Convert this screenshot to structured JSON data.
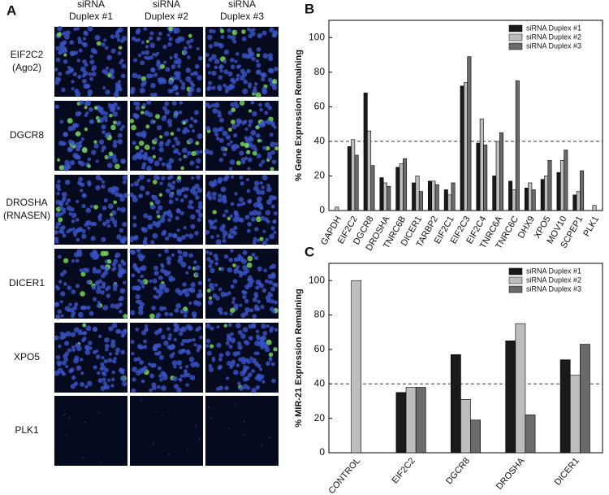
{
  "panel_a": {
    "label": "A",
    "columns": [
      [
        "siRNA",
        "Duplex #1"
      ],
      [
        "siRNA",
        "Duplex #2"
      ],
      [
        "siRNA",
        "Duplex #3"
      ]
    ],
    "rows": [
      [
        "EIF2C2",
        "(Ago2)"
      ],
      [
        "DGCR8"
      ],
      [
        "DROSHA",
        "(RNASEN)"
      ],
      [
        "DICER1"
      ],
      [
        "XPO5"
      ],
      [
        "PLK1"
      ]
    ]
  },
  "chart_data": [
    {
      "type": "bar",
      "panel_label": "B",
      "y_label": "% Gene Expression Remaining",
      "categories": [
        "GAPDH",
        "EIF2C2",
        "DGCR8",
        "DROSHA",
        "TNRC6B",
        "DICER1",
        "TARBP2",
        "EIF2C1",
        "EIF2C3",
        "EIF2C4",
        "TNRC6A",
        "TNRC6C",
        "DHX9",
        "XPO5",
        "MOV10",
        "SCPEP1",
        "PLK1"
      ],
      "series": [
        {
          "name": "siRNA Duplex #1",
          "color": "#1a1a1a",
          "values": [
            0,
            37,
            68,
            19,
            25,
            16,
            17,
            12,
            72,
            39,
            20,
            17,
            13,
            18,
            22,
            9,
            0
          ]
        },
        {
          "name": "siRNA Duplex #2",
          "color": "#bdbdbd",
          "values": [
            2,
            41,
            46,
            16,
            27,
            20,
            17,
            9,
            74,
            53,
            40,
            12,
            16,
            20,
            29,
            11,
            3
          ]
        },
        {
          "name": "siRNA Duplex #3",
          "color": "#6a6a6a",
          "values": [
            0,
            32,
            26,
            14,
            30,
            11,
            15,
            16,
            89,
            38,
            45,
            75,
            12,
            29,
            35,
            23,
            0
          ]
        }
      ],
      "ylim": [
        0,
        110
      ],
      "yticks": [
        0,
        20,
        40,
        60,
        80,
        100
      ],
      "reference_line": 40,
      "legend": "top-right"
    },
    {
      "type": "bar",
      "panel_label": "C",
      "y_label": "% MIR-21 Expression Remaining",
      "categories": [
        "CONTROL",
        "EIF2C2",
        "DGCR8",
        "DROSHA",
        "DICER1"
      ],
      "series": [
        {
          "name": "siRNA Duplex #1",
          "color": "#1a1a1a",
          "values": [
            null,
            35,
            57,
            65,
            54
          ]
        },
        {
          "name": "siRNA Duplex #2",
          "color": "#bdbdbd",
          "values": [
            100,
            38,
            31,
            75,
            45
          ]
        },
        {
          "name": "siRNA Duplex #3",
          "color": "#6a6a6a",
          "values": [
            null,
            38,
            19,
            22,
            63
          ]
        }
      ],
      "ylim": [
        0,
        110
      ],
      "yticks": [
        0,
        20,
        40,
        60,
        80,
        100
      ],
      "reference_line": 40,
      "legend": "top-right"
    }
  ]
}
